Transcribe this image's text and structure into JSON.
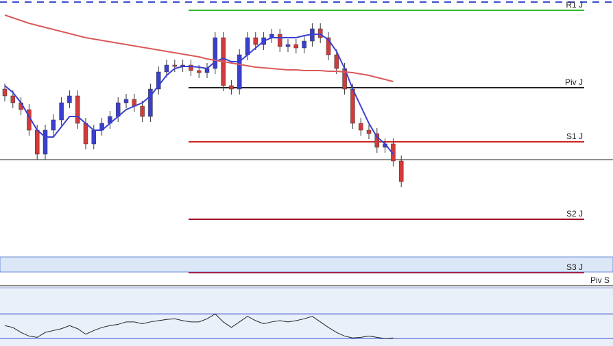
{
  "chart_data": [
    {
      "type": "candlestick",
      "ylim": [
        0,
        505
      ],
      "up_color": "#3a3fd0",
      "down_color": "#d23b3b",
      "wick_color": "#333333",
      "open": [
        375,
        365,
        355,
        345,
        315,
        280,
        315,
        330,
        355,
        365,
        325,
        295,
        315,
        325,
        335,
        355,
        360,
        350,
        335,
        375,
        400,
        410,
        408,
        410,
        402,
        399,
        405,
        450,
        380,
        375,
        425,
        450,
        440,
        450,
        455,
        437,
        440,
        435,
        445,
        463,
        450,
        425,
        405,
        375,
        325,
        315,
        310,
        290,
        295,
        270
      ],
      "high": [
        383,
        373,
        363,
        353,
        323,
        323,
        338,
        363,
        373,
        373,
        333,
        323,
        333,
        343,
        363,
        368,
        368,
        358,
        383,
        408,
        418,
        418,
        418,
        418,
        410,
        413,
        458,
        458,
        388,
        433,
        458,
        458,
        458,
        463,
        463,
        448,
        448,
        453,
        471,
        471,
        458,
        433,
        413,
        383,
        333,
        323,
        318,
        303,
        303,
        278
      ],
      "low": [
        357,
        347,
        337,
        307,
        272,
        272,
        307,
        322,
        347,
        317,
        287,
        287,
        307,
        317,
        327,
        347,
        342,
        327,
        327,
        367,
        392,
        400,
        400,
        394,
        391,
        391,
        397,
        372,
        367,
        367,
        417,
        432,
        432,
        442,
        429,
        429,
        427,
        427,
        437,
        442,
        417,
        397,
        367,
        317,
        307,
        302,
        282,
        282,
        262,
        232
      ],
      "close": [
        365,
        355,
        345,
        315,
        280,
        315,
        330,
        355,
        365,
        325,
        295,
        315,
        325,
        335,
        355,
        360,
        350,
        335,
        375,
        400,
        410,
        408,
        410,
        402,
        399,
        405,
        450,
        380,
        375,
        425,
        450,
        440,
        450,
        455,
        437,
        440,
        435,
        445,
        463,
        450,
        425,
        405,
        375,
        325,
        315,
        310,
        290,
        295,
        270,
        240
      ],
      "series": [
        {
          "color": "#3a3fd0",
          "values": [
            380,
            370,
            355,
            335,
            315,
            305,
            305,
            320,
            335,
            335,
            325,
            315,
            315,
            325,
            335,
            345,
            350,
            355,
            365,
            380,
            395,
            405,
            408,
            408,
            407,
            405,
            415,
            420,
            415,
            415,
            425,
            435,
            445,
            450,
            450,
            450,
            450,
            453,
            455,
            455,
            447,
            430,
            405,
            375,
            350,
            325,
            305,
            295,
            280,
            null
          ]
        },
        {
          "color": "#d85a5a",
          "values": [
            483,
            479,
            475,
            471,
            468,
            465,
            462,
            459,
            456,
            453,
            450,
            448,
            446,
            444,
            442,
            440,
            438,
            436,
            434,
            432,
            430,
            428,
            426,
            424,
            422,
            419,
            417,
            415,
            413,
            411,
            409,
            407,
            406,
            405,
            404,
            403,
            403,
            402,
            402,
            402,
            401,
            401,
            400,
            399,
            397,
            395,
            392,
            389,
            386,
            null
          ]
        }
      ],
      "levels": [
        {
          "label": "R1 J",
          "value": 490,
          "color": "#2db92d",
          "extends_left": false
        },
        {
          "label": "Piv J",
          "value": 377,
          "color": "#222222",
          "extends_left": false
        },
        {
          "label": null,
          "value": 272,
          "color": "#222222",
          "extends_left": true
        },
        {
          "label": "S1 J",
          "value": 298,
          "color": "#cc2222",
          "extends_left": false
        },
        {
          "label": "S2 J",
          "value": 185,
          "color": "#a01028",
          "extends_left": false
        },
        {
          "label": "S3 J",
          "value": 107,
          "color": "#a02048",
          "extends_left": false
        },
        {
          "label": "Piv S",
          "value": 88,
          "color": "#111111",
          "extends_left": true
        }
      ]
    },
    {
      "type": "oscillator",
      "ylim": [
        18,
        110
      ],
      "color": "#222222",
      "levels": [
        70,
        30
      ],
      "level_color": "#3a4fd0",
      "values": [
        51,
        48,
        40,
        34,
        32,
        40,
        43,
        46,
        51,
        46,
        37,
        43,
        48,
        51,
        53,
        57,
        57,
        54,
        57,
        59,
        61,
        62,
        59,
        57,
        57,
        62,
        70,
        57,
        48,
        57,
        66,
        59,
        54,
        57,
        59,
        57,
        59,
        62,
        66,
        57,
        48,
        40,
        34,
        31,
        32,
        34,
        32,
        30,
        31,
        null
      ]
    }
  ]
}
